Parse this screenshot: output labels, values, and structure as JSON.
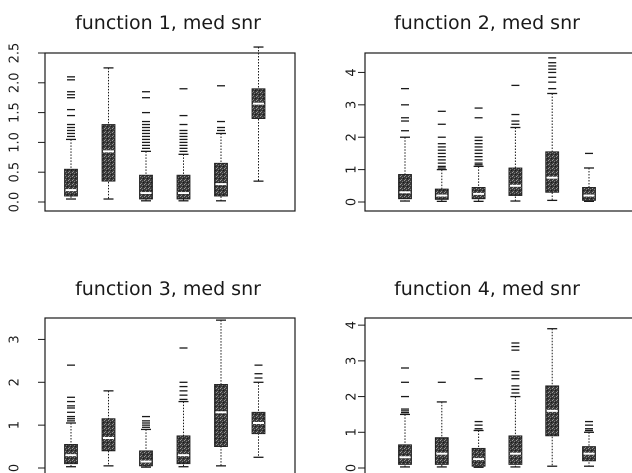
{
  "chart_data": [
    {
      "type": "box",
      "title": "function 1, med snr",
      "ylim": [
        0,
        2.5
      ],
      "yticks": [
        0.0,
        0.5,
        1.0,
        1.5,
        2.0,
        2.5
      ],
      "yticklabels": [
        "0.0",
        "0.5",
        "1.0",
        "1.5",
        "2.0",
        "2.5"
      ],
      "boxes": [
        {
          "q1": 0.1,
          "median": 0.2,
          "q3": 0.55,
          "whisker_low": 0.05,
          "whisker_high": 1.05,
          "outliers": [
            1.1,
            1.15,
            1.2,
            1.25,
            1.3,
            1.45,
            1.55,
            1.75,
            1.8,
            1.85,
            2.05,
            2.1
          ]
        },
        {
          "q1": 0.35,
          "median": 0.85,
          "q3": 1.3,
          "whisker_low": 0.05,
          "whisker_high": 2.25,
          "outliers": []
        },
        {
          "q1": 0.05,
          "median": 0.15,
          "q3": 0.45,
          "whisker_low": 0.02,
          "whisker_high": 0.85,
          "outliers": [
            0.9,
            0.95,
            1.0,
            1.05,
            1.1,
            1.15,
            1.2,
            1.25,
            1.3,
            1.35,
            1.5,
            1.75,
            1.85
          ]
        },
        {
          "q1": 0.05,
          "median": 0.15,
          "q3": 0.45,
          "whisker_low": 0.02,
          "whisker_high": 0.8,
          "outliers": [
            0.85,
            0.9,
            0.95,
            1.0,
            1.05,
            1.1,
            1.15,
            1.2,
            1.3,
            1.45,
            1.9
          ]
        },
        {
          "q1": 0.1,
          "median": 0.3,
          "q3": 0.65,
          "whisker_low": 0.02,
          "whisker_high": 1.15,
          "outliers": [
            1.2,
            1.25,
            1.35,
            1.95
          ]
        },
        {
          "q1": 1.4,
          "median": 1.65,
          "q3": 1.9,
          "whisker_low": 0.35,
          "whisker_high": 2.6,
          "outliers": []
        }
      ]
    },
    {
      "type": "box",
      "title": "function 2, med snr",
      "ylim": [
        0,
        4.6
      ],
      "yticks": [
        0,
        1,
        2,
        3,
        4
      ],
      "yticklabels": [
        "0",
        "1",
        "2",
        "3",
        "4"
      ],
      "boxes": [
        {
          "q1": 0.1,
          "median": 0.3,
          "q3": 0.85,
          "whisker_low": 0.03,
          "whisker_high": 2.0,
          "outliers": [
            2.2,
            2.5,
            2.6,
            3.0,
            3.5
          ]
        },
        {
          "q1": 0.08,
          "median": 0.2,
          "q3": 0.4,
          "whisker_low": 0.02,
          "whisker_high": 1.0,
          "outliers": [
            1.05,
            1.1,
            1.2,
            1.3,
            1.4,
            1.5,
            1.6,
            1.7,
            1.8,
            2.0,
            2.4,
            2.8
          ]
        },
        {
          "q1": 0.1,
          "median": 0.25,
          "q3": 0.45,
          "whisker_low": 0.02,
          "whisker_high": 1.1,
          "outliers": [
            1.15,
            1.2,
            1.3,
            1.4,
            1.5,
            1.6,
            1.7,
            1.8,
            1.9,
            2.0,
            2.6,
            2.9
          ]
        },
        {
          "q1": 0.2,
          "median": 0.5,
          "q3": 1.05,
          "whisker_low": 0.03,
          "whisker_high": 2.3,
          "outliers": [
            2.4,
            2.5,
            2.7,
            3.6
          ]
        },
        {
          "q1": 0.3,
          "median": 0.75,
          "q3": 1.55,
          "whisker_low": 0.05,
          "whisker_high": 3.35,
          "outliers": [
            3.5,
            3.7,
            3.85,
            4.0,
            4.1,
            4.2,
            4.3,
            4.45
          ]
        },
        {
          "q1": 0.05,
          "median": 0.2,
          "q3": 0.45,
          "whisker_low": 0.02,
          "whisker_high": 1.05,
          "outliers": [
            1.5
          ]
        }
      ]
    },
    {
      "type": "box",
      "title": "function 3, med snr",
      "ylim": [
        0,
        3.5
      ],
      "yticks": [
        0,
        1,
        2,
        3
      ],
      "yticklabels": [
        "0",
        "1",
        "2",
        "3"
      ],
      "boxes": [
        {
          "q1": 0.1,
          "median": 0.3,
          "q3": 0.55,
          "whisker_low": 0.03,
          "whisker_high": 1.05,
          "outliers": [
            1.1,
            1.15,
            1.2,
            1.3,
            1.4,
            1.45,
            1.55,
            1.65,
            2.4
          ]
        },
        {
          "q1": 0.4,
          "median": 0.7,
          "q3": 1.15,
          "whisker_low": 0.05,
          "whisker_high": 1.8,
          "outliers": []
        },
        {
          "q1": 0.05,
          "median": 0.15,
          "q3": 0.4,
          "whisker_low": 0.02,
          "whisker_high": 0.9,
          "outliers": [
            0.95,
            1.0,
            1.05,
            1.1,
            1.2
          ]
        },
        {
          "q1": 0.1,
          "median": 0.3,
          "q3": 0.75,
          "whisker_low": 0.03,
          "whisker_high": 1.55,
          "outliers": [
            1.6,
            1.7,
            1.8,
            1.9,
            2.0,
            2.8
          ]
        },
        {
          "q1": 0.5,
          "median": 1.3,
          "q3": 1.95,
          "whisker_low": 0.05,
          "whisker_high": 3.45,
          "outliers": []
        },
        {
          "q1": 0.8,
          "median": 1.05,
          "q3": 1.3,
          "whisker_low": 0.25,
          "whisker_high": 2.0,
          "outliers": [
            2.1,
            2.2,
            2.4
          ]
        }
      ]
    },
    {
      "type": "box",
      "title": "function 4, med snr",
      "ylim": [
        0,
        4.2
      ],
      "yticks": [
        0,
        1,
        2,
        3,
        4
      ],
      "yticklabels": [
        "0",
        "1",
        "2",
        "3",
        "4"
      ],
      "boxes": [
        {
          "q1": 0.1,
          "median": 0.3,
          "q3": 0.65,
          "whisker_low": 0.03,
          "whisker_high": 1.5,
          "outliers": [
            1.55,
            1.6,
            1.65,
            2.0,
            2.4,
            2.8
          ]
        },
        {
          "q1": 0.1,
          "median": 0.4,
          "q3": 0.85,
          "whisker_low": 0.03,
          "whisker_high": 1.85,
          "outliers": [
            2.4
          ]
        },
        {
          "q1": 0.05,
          "median": 0.25,
          "q3": 0.55,
          "whisker_low": 0.02,
          "whisker_high": 1.05,
          "outliers": [
            1.1,
            1.2,
            1.3,
            2.5
          ]
        },
        {
          "q1": 0.1,
          "median": 0.4,
          "q3": 0.9,
          "whisker_low": 0.03,
          "whisker_high": 2.0,
          "outliers": [
            2.1,
            2.2,
            2.3,
            2.5,
            2.6,
            2.7,
            3.3,
            3.4,
            3.5
          ]
        },
        {
          "q1": 0.9,
          "median": 1.6,
          "q3": 2.3,
          "whisker_low": 0.05,
          "whisker_high": 3.9,
          "outliers": []
        },
        {
          "q1": 0.2,
          "median": 0.4,
          "q3": 0.6,
          "whisker_low": 0.05,
          "whisker_high": 1.0,
          "outliers": [
            1.05,
            1.1,
            1.2,
            1.3
          ]
        }
      ]
    }
  ]
}
